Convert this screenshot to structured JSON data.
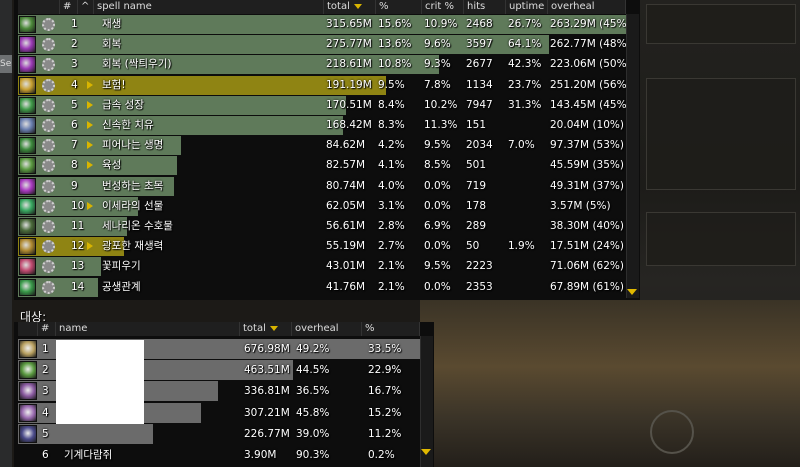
{
  "colors": {
    "bar_green": "#5f7a5a",
    "bar_highlight": "#8f8413",
    "bar_gray": "#6b6b6b",
    "accent_yellow": "#d8b400"
  },
  "left_tab_label": "Se",
  "spell_table": {
    "headers": {
      "icon": "",
      "num": "#",
      "caret": "^",
      "name": "spell name",
      "total": "total",
      "pct": "%",
      "crit": "crit %",
      "hits": "hits",
      "uptime": "uptime",
      "overheal": "overheal"
    },
    "sorted_by": "total",
    "rows": [
      {
        "rank": "1",
        "name": "재생",
        "total": "315.65M",
        "pct": "15.6%",
        "crit": "10.9%",
        "hits": "2468",
        "uptime": "26.7%",
        "overheal": "263.29M (45%)",
        "bar_fraction": 1.0,
        "highlight": false,
        "chevron": false,
        "icon_color": "#4c8a3a"
      },
      {
        "rank": "2",
        "name": "회복",
        "total": "275.77M",
        "pct": "13.6%",
        "crit": "9.6%",
        "hits": "3597",
        "uptime": "64.1%",
        "overheal": "262.77M (48%)",
        "bar_fraction": 0.874,
        "highlight": false,
        "chevron": false,
        "icon_color": "#9a3ab5"
      },
      {
        "rank": "3",
        "name": "회복 (싹틔우기)",
        "total": "218.61M",
        "pct": "10.8%",
        "crit": "9.3%",
        "hits": "2677",
        "uptime": "42.3%",
        "overheal": "223.06M (50%)",
        "bar_fraction": 0.693,
        "highlight": false,
        "chevron": false,
        "icon_color": "#9a3ab5"
      },
      {
        "rank": "4",
        "name": "보험!",
        "total": "191.19M",
        "pct": "9.5%",
        "crit": "7.8%",
        "hits": "1134",
        "uptime": "23.7%",
        "overheal": "251.20M (56%)",
        "bar_fraction": 0.606,
        "highlight": true,
        "chevron": true,
        "icon_color": "#c8a030"
      },
      {
        "rank": "5",
        "name": "급속 성장",
        "total": "170.51M",
        "pct": "8.4%",
        "crit": "10.2%",
        "hits": "7947",
        "uptime": "31.3%",
        "overheal": "143.45M (45%)",
        "bar_fraction": 0.54,
        "highlight": false,
        "chevron": true,
        "icon_color": "#3f9a48"
      },
      {
        "rank": "6",
        "name": "신속한 치유",
        "total": "168.42M",
        "pct": "8.3%",
        "crit": "11.3%",
        "hits": "151",
        "uptime": "",
        "overheal": "20.04M (10%)",
        "bar_fraction": 0.534,
        "highlight": false,
        "chevron": true,
        "icon_color": "#6a7fb0"
      },
      {
        "rank": "7",
        "name": "피어나는 생명",
        "total": "84.62M",
        "pct": "4.2%",
        "crit": "9.5%",
        "hits": "2034",
        "uptime": "7.0%",
        "overheal": "97.37M (53%)",
        "bar_fraction": 0.268,
        "highlight": false,
        "chevron": true,
        "icon_color": "#3c8a3c"
      },
      {
        "rank": "8",
        "name": "육성",
        "total": "82.57M",
        "pct": "4.1%",
        "crit": "8.5%",
        "hits": "501",
        "uptime": "",
        "overheal": "45.59M (35%)",
        "bar_fraction": 0.262,
        "highlight": false,
        "chevron": true,
        "icon_color": "#5a9a40"
      },
      {
        "rank": "9",
        "name": "번성하는 초목",
        "total": "80.74M",
        "pct": "4.0%",
        "crit": "0.0%",
        "hits": "719",
        "uptime": "",
        "overheal": "49.31M (37%)",
        "bar_fraction": 0.256,
        "highlight": false,
        "chevron": false,
        "icon_color": "#a83ac0"
      },
      {
        "rank": "10",
        "name": "이세라의 선물",
        "total": "62.05M",
        "pct": "3.1%",
        "crit": "0.0%",
        "hits": "178",
        "uptime": "",
        "overheal": "3.57M (5%)",
        "bar_fraction": 0.197,
        "highlight": false,
        "chevron": true,
        "icon_color": "#38a860"
      },
      {
        "rank": "11",
        "name": "세나리온 수호물",
        "total": "56.61M",
        "pct": "2.8%",
        "crit": "6.9%",
        "hits": "289",
        "uptime": "",
        "overheal": "38.30M (40%)",
        "bar_fraction": 0.179,
        "highlight": false,
        "chevron": false,
        "icon_color": "#4a6a3a"
      },
      {
        "rank": "12",
        "name": "광포한 재생력",
        "total": "55.19M",
        "pct": "2.7%",
        "crit": "0.0%",
        "hits": "50",
        "uptime": "1.9%",
        "overheal": "17.51M (24%)",
        "bar_fraction": 0.175,
        "highlight": true,
        "chevron": true,
        "icon_color": "#b08a30"
      },
      {
        "rank": "13",
        "name": "꽃피우기",
        "total": "43.01M",
        "pct": "2.1%",
        "crit": "9.5%",
        "hits": "2223",
        "uptime": "",
        "overheal": "71.06M (62%)",
        "bar_fraction": 0.136,
        "highlight": false,
        "chevron": false,
        "icon_color": "#c04a70"
      },
      {
        "rank": "14",
        "name": "공생관계",
        "total": "41.76M",
        "pct": "2.1%",
        "crit": "0.0%",
        "hits": "2353",
        "uptime": "",
        "overheal": "67.89M (61%)",
        "bar_fraction": 0.132,
        "highlight": false,
        "chevron": false,
        "icon_color": "#3a9a4a"
      }
    ]
  },
  "target_section": {
    "title": "대상:",
    "headers": {
      "icon": "",
      "num": "#",
      "name": "name",
      "total": "total",
      "overheal": "overheal",
      "pct": "%"
    },
    "rows": [
      {
        "rank": "1",
        "name": "",
        "total": "676.98M",
        "overheal": "49.2%",
        "pct": "33.5%",
        "bar_fraction": 1.0,
        "icon_color": "#b8a060"
      },
      {
        "rank": "2",
        "name": "",
        "total": "463.51M",
        "overheal": "44.5%",
        "pct": "22.9%",
        "bar_fraction": 0.685,
        "icon_color": "#5a9a40"
      },
      {
        "rank": "3",
        "name": "",
        "total": "336.81M",
        "overheal": "36.5%",
        "pct": "16.7%",
        "bar_fraction": 0.498,
        "icon_color": "#8a5aa0"
      },
      {
        "rank": "4",
        "name": "",
        "total": "307.21M",
        "overheal": "45.8%",
        "pct": "15.2%",
        "bar_fraction": 0.454,
        "icon_color": "#9a6ab0"
      },
      {
        "rank": "5",
        "name": "",
        "total": "226.77M",
        "overheal": "39.0%",
        "pct": "11.2%",
        "bar_fraction": 0.335,
        "icon_color": "#4a4a8a"
      },
      {
        "rank": "6",
        "name": "기계다람쥐",
        "total": "3.90M",
        "overheal": "90.3%",
        "pct": "0.2%",
        "bar_fraction": 0.0,
        "icon_color": ""
      }
    ]
  }
}
